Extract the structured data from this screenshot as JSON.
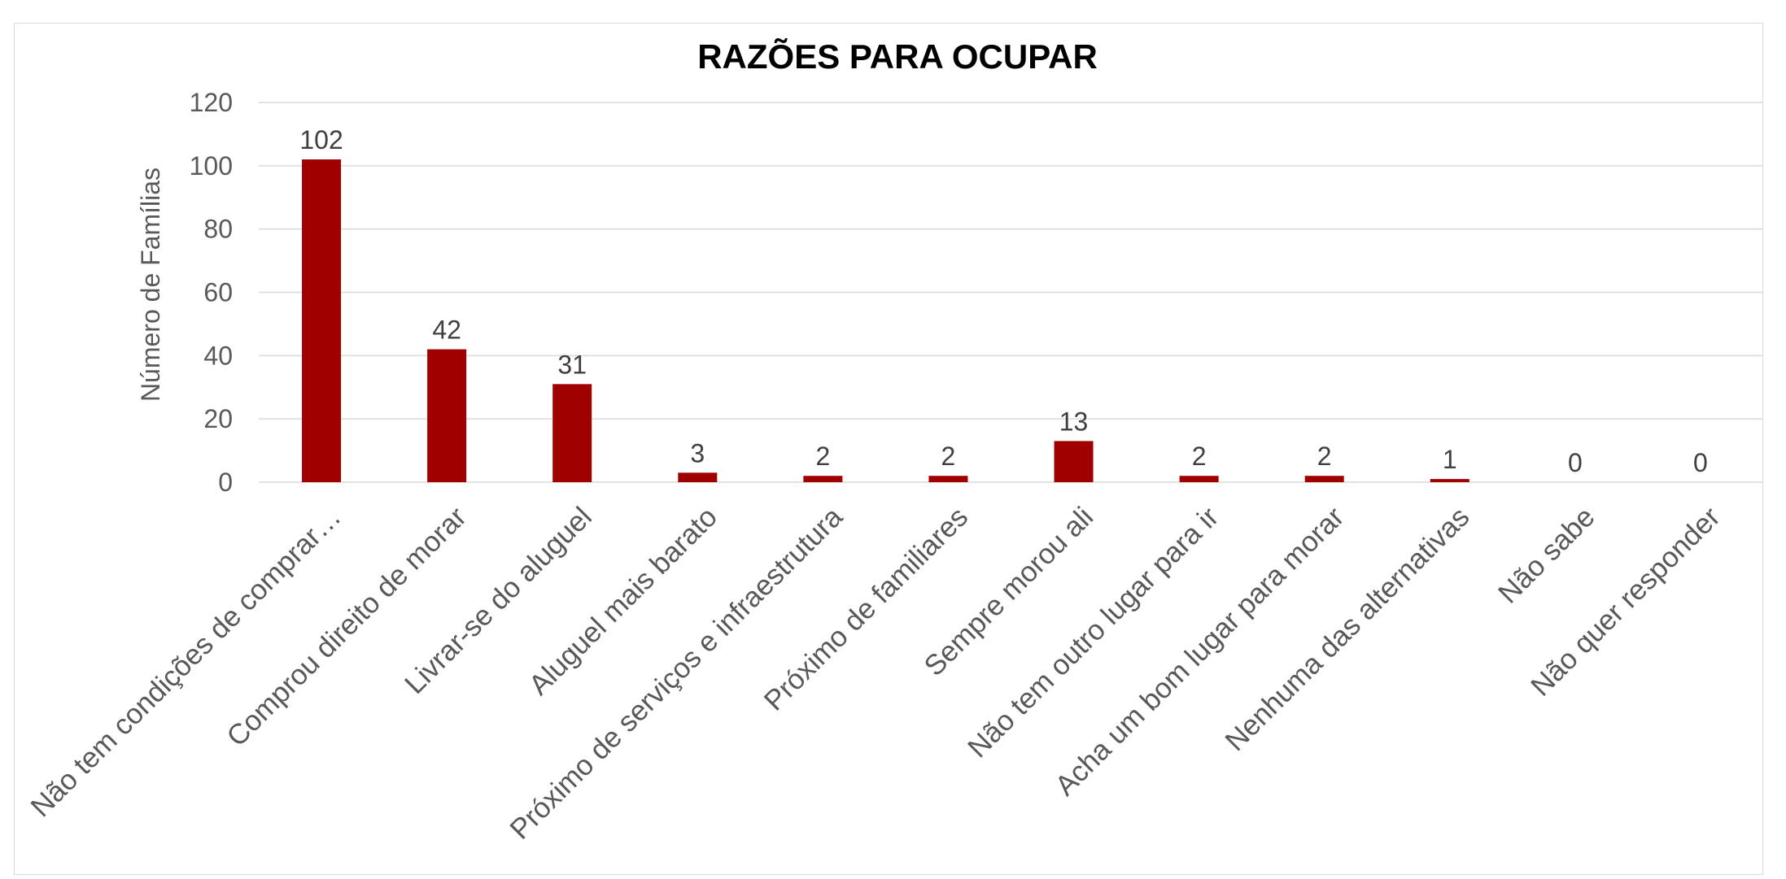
{
  "chart_data": {
    "type": "bar",
    "title": "RAZÕES PARA OCUPAR",
    "xlabel": "",
    "ylabel": "Número de Famílias",
    "categories": [
      "Não tem condições de comprar…",
      "Comprou direito de morar",
      "Livrar-se do aluguel",
      "Aluguel mais barato",
      "Próximo de serviços e infraestrutura",
      "Próximo de familiares",
      "Sempre morou ali",
      "Não tem outro lugar para ir",
      "Acha um bom lugar para morar",
      "Nenhuma das alternativas",
      "Não sabe",
      "Não quer responder"
    ],
    "values": [
      102,
      42,
      31,
      3,
      2,
      2,
      13,
      2,
      2,
      1,
      0,
      0
    ],
    "data_labels": [
      "102",
      "42",
      "31",
      "3",
      "2",
      "2",
      "13",
      "2",
      "2",
      "1",
      "0",
      "0"
    ],
    "ylim": [
      0,
      120
    ],
    "yticks": [
      "0",
      "20",
      "40",
      "60",
      "80",
      "100",
      "120"
    ],
    "grid": true,
    "legend": "none",
    "colors": {
      "bar": "#a00000",
      "grid": "#d9d9d9",
      "text": "#595959",
      "title": "#000000"
    }
  }
}
